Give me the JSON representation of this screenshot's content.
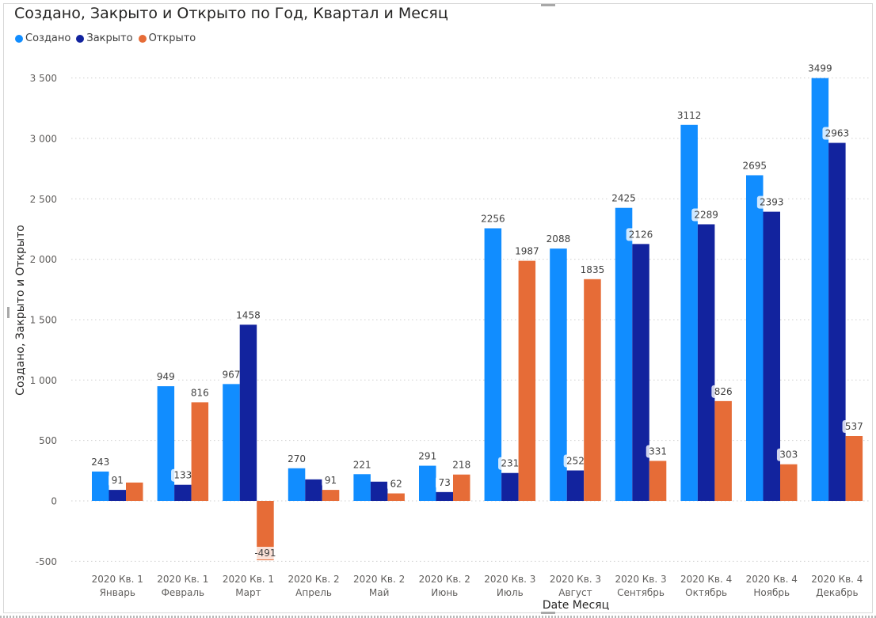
{
  "chart_data": {
    "type": "bar",
    "title": "Создано, Закрыто и Открыто по Год, Квартал и Месяц",
    "xlabel": "Date Месяц",
    "ylabel": "Создано, Закрыто и Открыто",
    "categories": [
      [
        "2020 Кв. 1",
        "Январь"
      ],
      [
        "2020 Кв. 1",
        "Февраль"
      ],
      [
        "2020 Кв. 1",
        "Март"
      ],
      [
        "2020 Кв. 2",
        "Апрель"
      ],
      [
        "2020 Кв. 2",
        "Май"
      ],
      [
        "2020 Кв. 2",
        "Июнь"
      ],
      [
        "2020 Кв. 3",
        "Июль"
      ],
      [
        "2020 Кв. 3",
        "Август"
      ],
      [
        "2020 Кв. 3",
        "Сентябрь"
      ],
      [
        "2020 Кв. 4",
        "Октябрь"
      ],
      [
        "2020 Кв. 4",
        "Ноябрь"
      ],
      [
        "2020 Кв. 4",
        "Декабрь"
      ]
    ],
    "series": [
      {
        "name": "Создано",
        "color": "#118dff",
        "values": [
          243,
          949,
          967,
          270,
          221,
          291,
          2256,
          2088,
          2425,
          3112,
          2695,
          3499
        ],
        "labels": [
          "243",
          "949",
          "967",
          "270",
          "221",
          "291",
          "2256",
          "2088",
          "2425",
          "3112",
          "2695",
          "3499"
        ]
      },
      {
        "name": "Закрыто",
        "color": "#12239e",
        "values": [
          91,
          133,
          1458,
          178,
          159,
          73,
          231,
          252,
          2126,
          2289,
          2393,
          2963
        ],
        "labels": [
          "91",
          "133",
          "1458",
          "",
          "",
          "73",
          "231",
          "252",
          "2126",
          "2289",
          "2393",
          "2963"
        ]
      },
      {
        "name": "Открыто",
        "color": "#e66c37",
        "values": [
          152,
          816,
          -491,
          91,
          62,
          218,
          1987,
          1835,
          331,
          826,
          303,
          537
        ],
        "labels": [
          "",
          "816",
          "-491",
          "91",
          "62",
          "218",
          "1987",
          "1835",
          "331",
          "826",
          "303",
          "537"
        ]
      }
    ],
    "y_ticks": [
      -500,
      0,
      500,
      1000,
      1500,
      2000,
      2500,
      3000,
      3500
    ],
    "y_tick_labels": [
      "-500",
      "0",
      "500",
      "1 000",
      "1 500",
      "2 000",
      "2 500",
      "3 000",
      "3 500"
    ],
    "ylim": [
      -500,
      3500
    ],
    "grid": true,
    "legend_position": "top-left",
    "data_labels": true
  }
}
